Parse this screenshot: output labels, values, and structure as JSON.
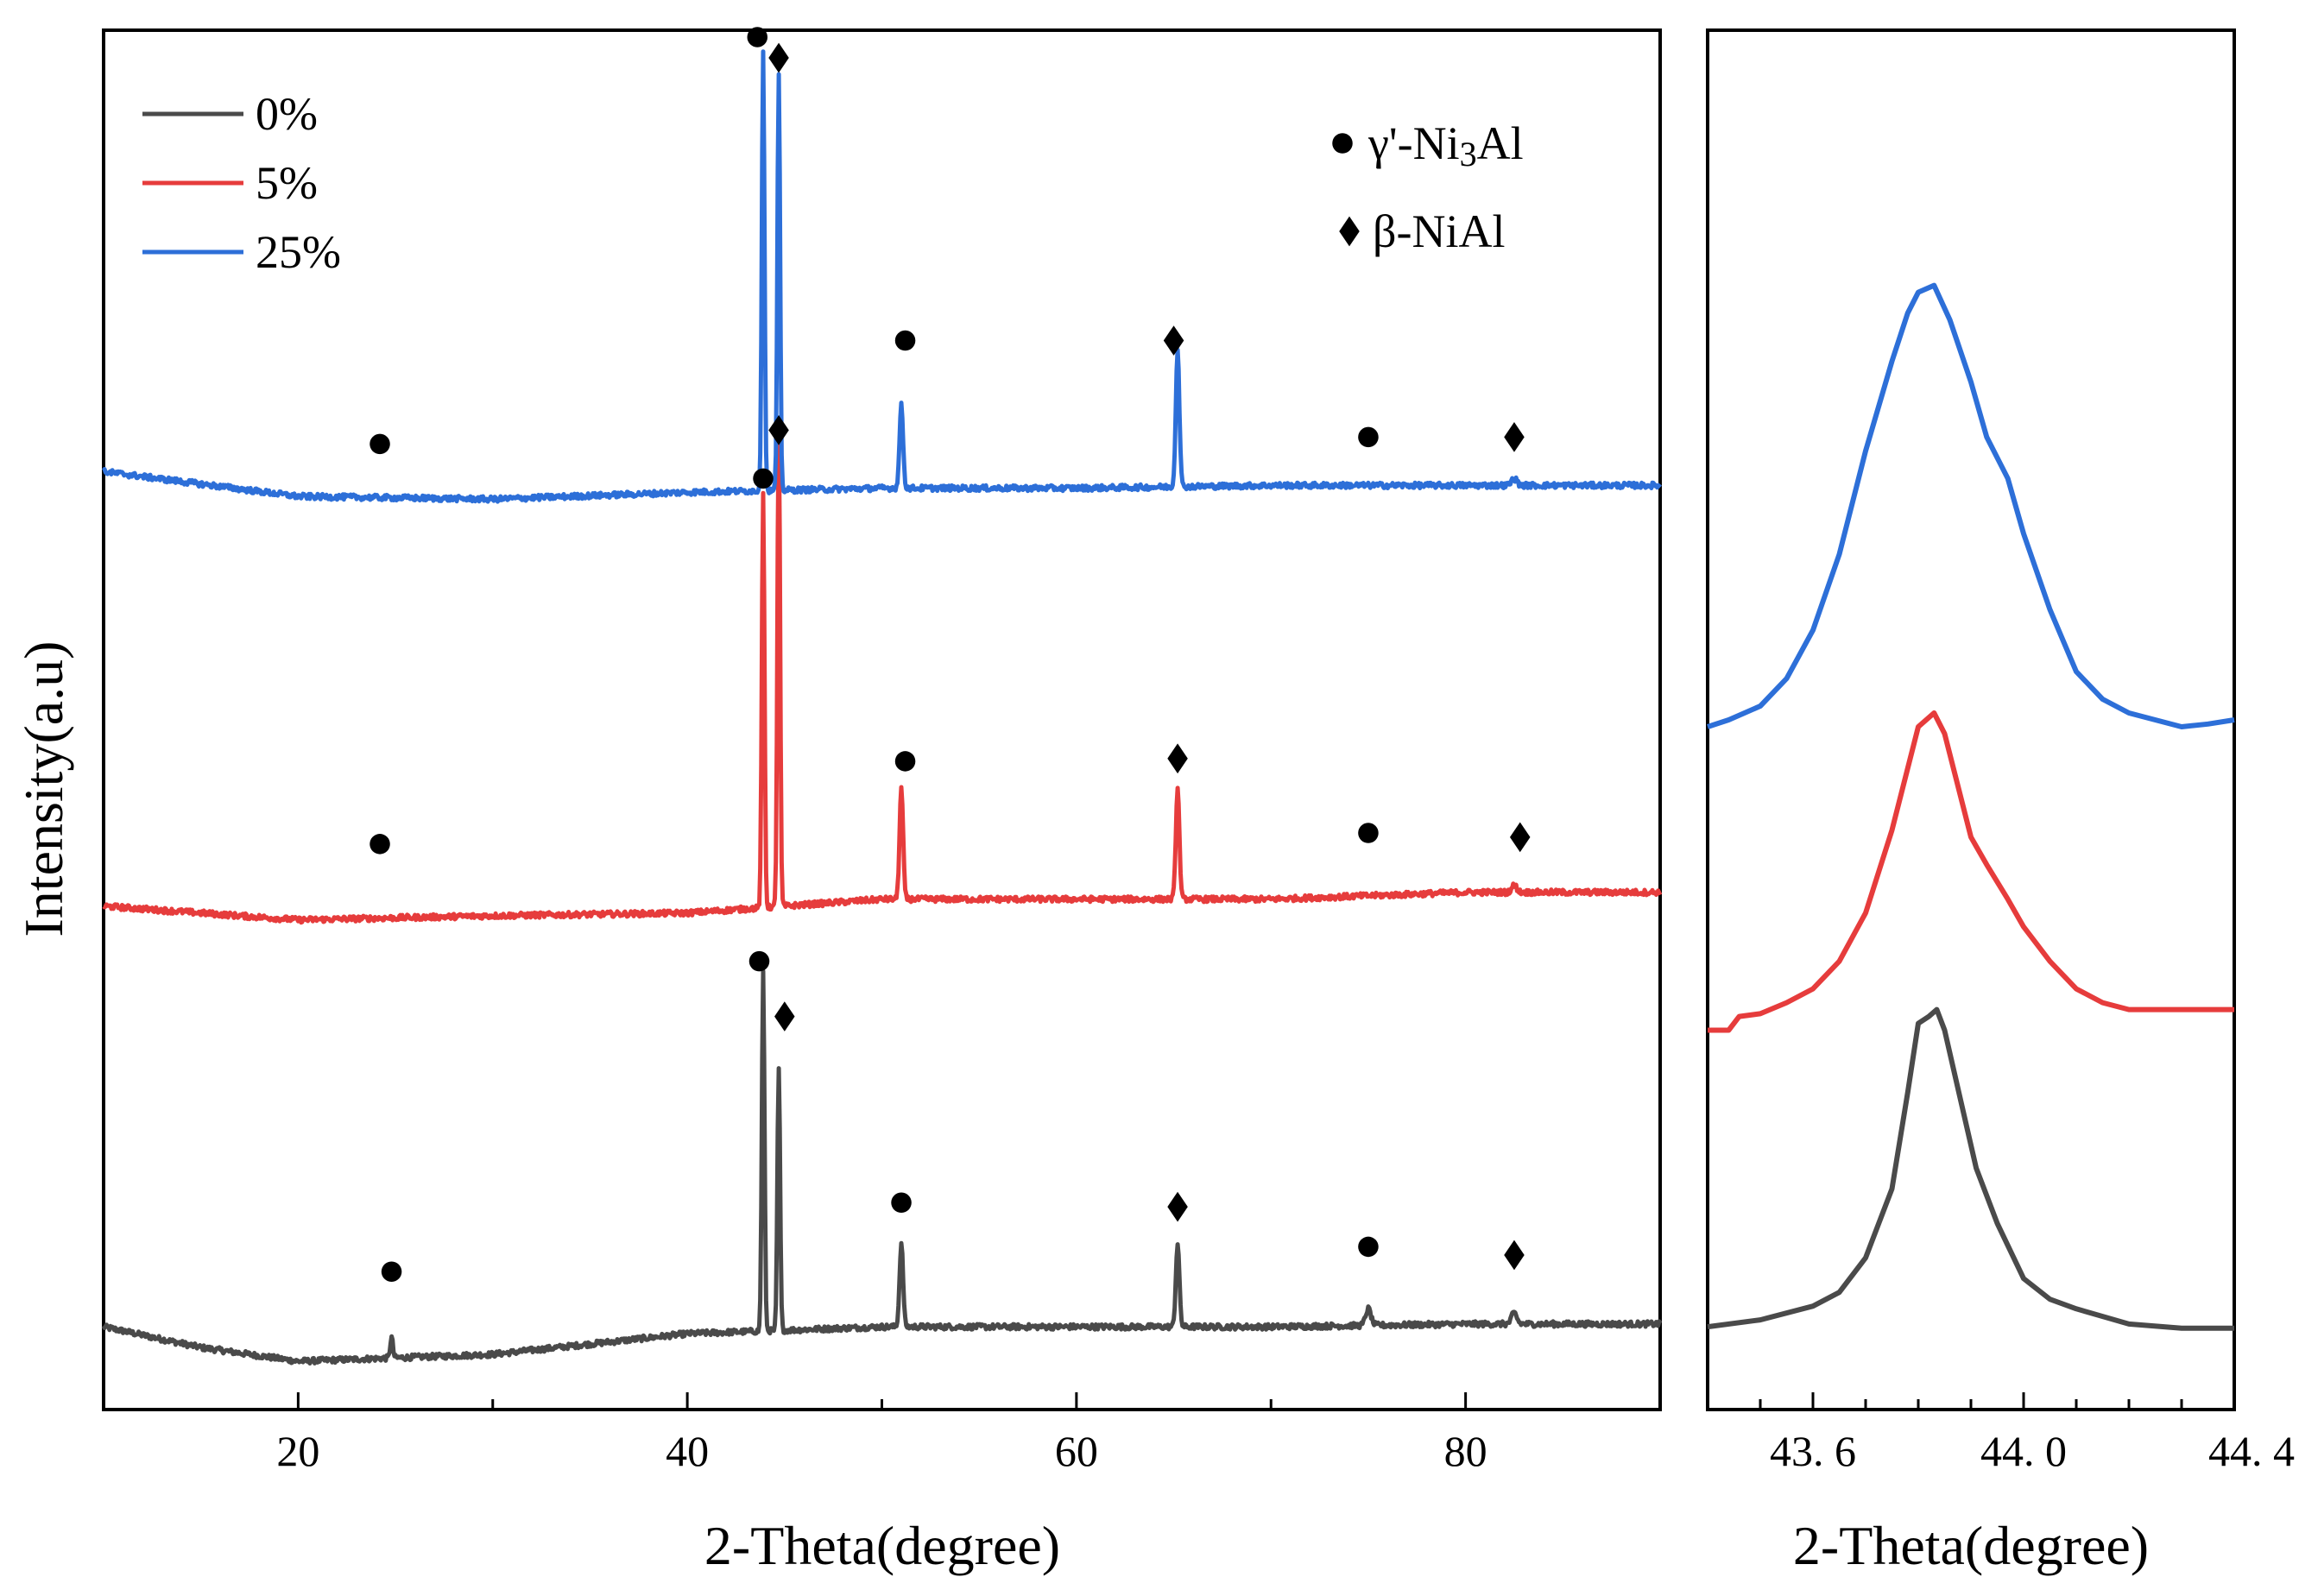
{
  "chart_data": [
    {
      "type": "line",
      "panel": "main",
      "xlabel": "2-Theta(degree)",
      "ylabel": "Intensity(a.u)",
      "xlim": [
        10,
        90
      ],
      "xticks": [
        20,
        40,
        60,
        80
      ],
      "ylim": [
        0,
        1
      ],
      "y_ticks_labeled": false,
      "series": [
        {
          "name": "0%",
          "color": "#4a4a4a",
          "baseline": 0.04,
          "baseline_profile": [
            [
              10,
              0.06
            ],
            [
              15,
              0.045
            ],
            [
              20,
              0.035
            ],
            [
              30,
              0.04
            ],
            [
              40,
              0.055
            ],
            [
              50,
              0.06
            ],
            [
              60,
              0.06
            ],
            [
              70,
              0.06
            ],
            [
              80,
              0.062
            ],
            [
              90,
              0.062
            ]
          ],
          "peaks": [
            {
              "x": 24.8,
              "h": 0.015,
              "w": 0.15
            },
            {
              "x": 43.9,
              "h": 0.26,
              "w": 0.15
            },
            {
              "x": 44.7,
              "h": 0.19,
              "w": 0.15
            },
            {
              "x": 51.0,
              "h": 0.06,
              "w": 0.2
            },
            {
              "x": 65.2,
              "h": 0.06,
              "w": 0.2
            },
            {
              "x": 75.0,
              "h": 0.012,
              "w": 0.3
            },
            {
              "x": 82.5,
              "h": 0.008,
              "w": 0.3
            }
          ],
          "markers": [
            {
              "x": 24.8,
              "y": 0.1,
              "symbol": "circle"
            },
            {
              "x": 43.7,
              "y": 0.325,
              "symbol": "circle"
            },
            {
              "x": 45.0,
              "y": 0.285,
              "symbol": "diamond"
            },
            {
              "x": 51.0,
              "y": 0.15,
              "symbol": "circle"
            },
            {
              "x": 65.2,
              "y": 0.147,
              "symbol": "diamond"
            },
            {
              "x": 75.0,
              "y": 0.118,
              "symbol": "circle"
            },
            {
              "x": 82.5,
              "y": 0.112,
              "symbol": "diamond"
            }
          ]
        },
        {
          "name": "5%",
          "color": "#e63c3c",
          "baseline": 0.35,
          "baseline_profile": [
            [
              10,
              0.365
            ],
            [
              20,
              0.355
            ],
            [
              30,
              0.358
            ],
            [
              40,
              0.36
            ],
            [
              50,
              0.37
            ],
            [
              60,
              0.37
            ],
            [
              70,
              0.37
            ],
            [
              80,
              0.375
            ],
            [
              90,
              0.375
            ]
          ],
          "peaks": [
            {
              "x": 43.9,
              "h": 0.3,
              "w": 0.15
            },
            {
              "x": 44.7,
              "h": 0.35,
              "w": 0.15
            },
            {
              "x": 51.0,
              "h": 0.08,
              "w": 0.2
            },
            {
              "x": 65.2,
              "h": 0.08,
              "w": 0.2
            },
            {
              "x": 82.5,
              "h": 0.005,
              "w": 0.3
            }
          ],
          "markers": [
            {
              "x": 24.2,
              "y": 0.41,
              "symbol": "circle"
            },
            {
              "x": 43.9,
              "y": 0.675,
              "symbol": "circle"
            },
            {
              "x": 44.7,
              "y": 0.71,
              "symbol": "diamond"
            },
            {
              "x": 51.2,
              "y": 0.47,
              "symbol": "circle"
            },
            {
              "x": 65.2,
              "y": 0.472,
              "symbol": "diamond"
            },
            {
              "x": 75.0,
              "y": 0.418,
              "symbol": "circle"
            },
            {
              "x": 82.8,
              "y": 0.415,
              "symbol": "diamond"
            }
          ]
        },
        {
          "name": "25%",
          "color": "#2d6fd8",
          "baseline": 0.65,
          "baseline_profile": [
            [
              10,
              0.68
            ],
            [
              20,
              0.662
            ],
            [
              30,
              0.66
            ],
            [
              40,
              0.665
            ],
            [
              50,
              0.668
            ],
            [
              60,
              0.668
            ],
            [
              70,
              0.67
            ],
            [
              80,
              0.67
            ],
            [
              90,
              0.67
            ]
          ],
          "peaks": [
            {
              "x": 43.9,
              "h": 0.32,
              "w": 0.15
            },
            {
              "x": 44.7,
              "h": 0.3,
              "w": 0.15
            },
            {
              "x": 51.0,
              "h": 0.06,
              "w": 0.2
            },
            {
              "x": 65.2,
              "h": 0.1,
              "w": 0.2
            },
            {
              "x": 82.5,
              "h": 0.005,
              "w": 0.3
            }
          ],
          "markers": [
            {
              "x": 24.2,
              "y": 0.7,
              "symbol": "circle"
            },
            {
              "x": 43.6,
              "y": 0.995,
              "symbol": "circle"
            },
            {
              "x": 44.7,
              "y": 0.98,
              "symbol": "diamond"
            },
            {
              "x": 51.2,
              "y": 0.775,
              "symbol": "circle"
            },
            {
              "x": 65.0,
              "y": 0.775,
              "symbol": "diamond"
            },
            {
              "x": 75.0,
              "y": 0.705,
              "symbol": "circle"
            },
            {
              "x": 82.5,
              "y": 0.705,
              "symbol": "diamond"
            }
          ]
        }
      ],
      "legend": {
        "location": "top-left",
        "entries": [
          "0%",
          "5%",
          "25%"
        ]
      },
      "phase_legend": {
        "location": "top-right",
        "entries": [
          {
            "symbol": "circle",
            "label": "γ'-Ni3Al",
            "label_text": "γ'-Ni",
            "label_sub": "3",
            "label_tail": "Al"
          },
          {
            "symbol": "diamond",
            "label": "β-NiAl"
          }
        ]
      }
    },
    {
      "type": "line",
      "panel": "zoom",
      "xlabel": "2-Theta(degree)",
      "xlim": [
        43.4,
        44.4
      ],
      "xticks": [
        43.6,
        44.0,
        44.4
      ],
      "xtick_labels": [
        "43. 6",
        "44. 0",
        "44. 4"
      ],
      "ylim": [
        0,
        1
      ],
      "series": [
        {
          "name": "0%",
          "color": "#4a4a4a",
          "points": [
            [
              43.4,
              0.06
            ],
            [
              43.5,
              0.065
            ],
            [
              43.6,
              0.075
            ],
            [
              43.65,
              0.085
            ],
            [
              43.7,
              0.11
            ],
            [
              43.75,
              0.16
            ],
            [
              43.78,
              0.23
            ],
            [
              43.8,
              0.28
            ],
            [
              43.82,
              0.285
            ],
            [
              43.835,
              0.29
            ],
            [
              43.85,
              0.275
            ],
            [
              43.88,
              0.225
            ],
            [
              43.91,
              0.175
            ],
            [
              43.95,
              0.135
            ],
            [
              44.0,
              0.095
            ],
            [
              44.05,
              0.08
            ],
            [
              44.1,
              0.073
            ],
            [
              44.2,
              0.062
            ],
            [
              44.3,
              0.059
            ],
            [
              44.4,
              0.059
            ]
          ]
        },
        {
          "name": "5%",
          "color": "#e63c3c",
          "points": [
            [
              43.4,
              0.275
            ],
            [
              43.44,
              0.275
            ],
            [
              43.46,
              0.285
            ],
            [
              43.5,
              0.287
            ],
            [
              43.55,
              0.295
            ],
            [
              43.6,
              0.305
            ],
            [
              43.65,
              0.325
            ],
            [
              43.7,
              0.36
            ],
            [
              43.75,
              0.42
            ],
            [
              43.8,
              0.495
            ],
            [
              43.83,
              0.505
            ],
            [
              43.85,
              0.49
            ],
            [
              43.87,
              0.46
            ],
            [
              43.9,
              0.415
            ],
            [
              43.93,
              0.395
            ],
            [
              43.97,
              0.37
            ],
            [
              44.0,
              0.35
            ],
            [
              44.05,
              0.325
            ],
            [
              44.1,
              0.305
            ],
            [
              44.15,
              0.295
            ],
            [
              44.2,
              0.29
            ],
            [
              44.3,
              0.29
            ],
            [
              44.4,
              0.29
            ]
          ]
        },
        {
          "name": "25%",
          "color": "#2d6fd8",
          "points": [
            [
              43.4,
              0.495
            ],
            [
              43.44,
              0.5
            ],
            [
              43.5,
              0.51
            ],
            [
              43.55,
              0.53
            ],
            [
              43.6,
              0.565
            ],
            [
              43.65,
              0.62
            ],
            [
              43.7,
              0.695
            ],
            [
              43.75,
              0.76
            ],
            [
              43.78,
              0.795
            ],
            [
              43.8,
              0.81
            ],
            [
              43.83,
              0.815
            ],
            [
              43.86,
              0.79
            ],
            [
              43.9,
              0.745
            ],
            [
              43.93,
              0.705
            ],
            [
              43.97,
              0.675
            ],
            [
              44.0,
              0.635
            ],
            [
              44.05,
              0.58
            ],
            [
              44.1,
              0.535
            ],
            [
              44.15,
              0.515
            ],
            [
              44.2,
              0.505
            ],
            [
              44.25,
              0.5
            ],
            [
              44.3,
              0.495
            ],
            [
              44.35,
              0.497
            ],
            [
              44.4,
              0.5
            ]
          ]
        }
      ]
    }
  ]
}
